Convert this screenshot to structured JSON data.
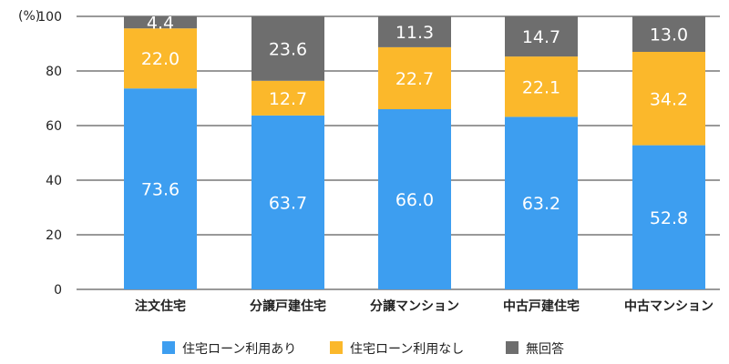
{
  "chart_data": {
    "type": "bar",
    "stacked": true,
    "unit_label": "(%)",
    "categories": [
      "注文住宅",
      "分譲戸建住宅",
      "分譲マンション",
      "中古戸建住宅",
      "中古マンション"
    ],
    "series": [
      {
        "name": "住宅ローン利用あり",
        "color": "#3d9ef0",
        "values": [
          73.6,
          63.7,
          66.0,
          63.2,
          52.8
        ],
        "labels": [
          "73.6",
          "63.7",
          "66.0",
          "63.2",
          "52.8"
        ]
      },
      {
        "name": "住宅ローン利用なし",
        "color": "#fbb82b",
        "values": [
          22.0,
          12.7,
          22.7,
          22.1,
          34.2
        ],
        "labels": [
          "22.0",
          "12.7",
          "22.7",
          "22.1",
          "34.2"
        ]
      },
      {
        "name": "無回答",
        "color": "#6e6e6e",
        "values": [
          4.4,
          23.6,
          11.3,
          14.7,
          13.0
        ],
        "labels": [
          "4.4",
          "23.6",
          "11.3",
          "14.7",
          "13.0"
        ]
      }
    ],
    "y_ticks": [
      "0",
      "20",
      "40",
      "60",
      "80",
      "100"
    ],
    "ylim": [
      0,
      100
    ],
    "grid": true,
    "legend_position": "bottom"
  }
}
